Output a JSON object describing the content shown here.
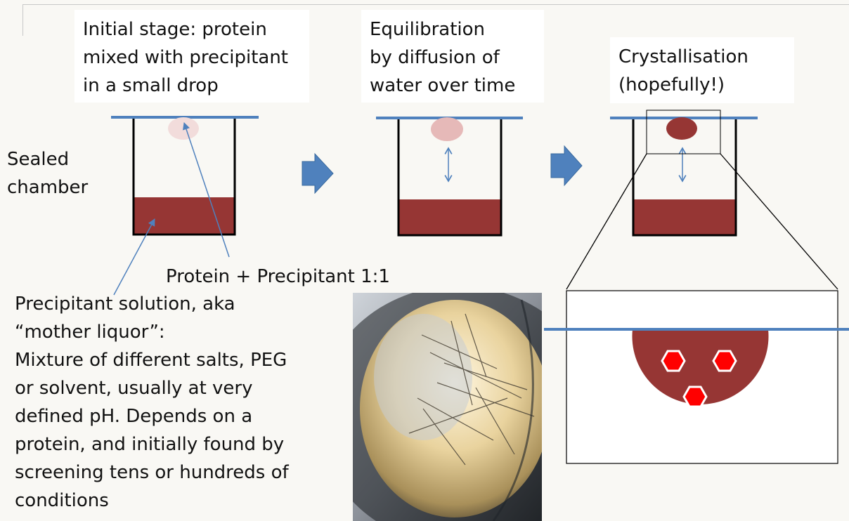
{
  "stages": [
    {
      "label": "Initial stage: protein\nmixed with precipitant\nin a small drop"
    },
    {
      "label": "Equilibration\nby diffusion of\nwater over time"
    },
    {
      "label": "Crystallisation\n(hopefully!)"
    }
  ],
  "chamber_label": "Sealed\nchamber",
  "drop_label": "Protein + Precipitant 1:1",
  "precipitant_description": "Precipitant solution, aka\n“mother liquor”:\nMixture of different salts, PEG\nor solvent, usually at very\ndefined pH. Depends on a\nprotein, and initially found by\nscreening tens or hundreds of\nconditions",
  "colors": {
    "reservoir": "#963634",
    "drop_initial": "#f2dcdb",
    "drop_mid": "#e6b9b8",
    "drop_final": "#963634",
    "seal_line": "#4f81bd",
    "arrow": "#4f81bd",
    "crystal": "#ff0000"
  },
  "icons": [
    "right-arrow-icon",
    "double-arrow-icon",
    "hexagon-crystal-icon"
  ]
}
